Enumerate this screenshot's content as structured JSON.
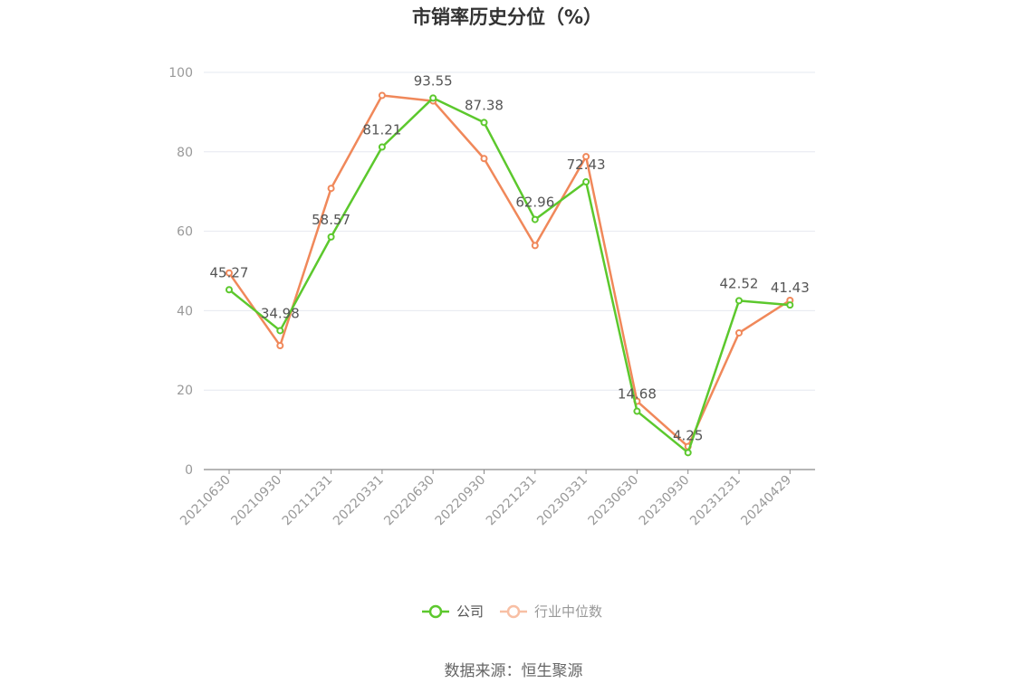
{
  "chart_data": {
    "type": "line",
    "title": "市销率历史分位（%）",
    "categories": [
      "20210630",
      "20210930",
      "20211231",
      "20220331",
      "20220630",
      "20220930",
      "20221231",
      "20230331",
      "20230630",
      "20230930",
      "20231231",
      "20240429"
    ],
    "ylim": [
      0,
      100
    ],
    "yticks": [
      "0",
      "20",
      "40",
      "60",
      "80",
      "100"
    ],
    "grid": true,
    "legend_position": "bottom",
    "series": [
      {
        "name": "公司",
        "color": "#5cc82d",
        "values": [
          45.27,
          34.98,
          58.57,
          81.21,
          93.55,
          87.38,
          62.96,
          72.43,
          14.68,
          4.25,
          42.52,
          41.43
        ],
        "labels": [
          "45.27",
          "34.98",
          "58.57",
          "81.21",
          "93.55",
          "87.38",
          "62.96",
          "72.43",
          "14.68",
          "4.25",
          "42.52",
          "41.43"
        ]
      },
      {
        "name": "行业中位数",
        "color": "#f0885a",
        "legend_color": "#f8bfa4",
        "values": [
          49.5,
          31.2,
          70.8,
          94.2,
          92.8,
          78.3,
          56.4,
          78.8,
          17.2,
          5.8,
          34.4,
          42.6
        ]
      }
    ]
  },
  "source": "数据来源：恒生聚源"
}
